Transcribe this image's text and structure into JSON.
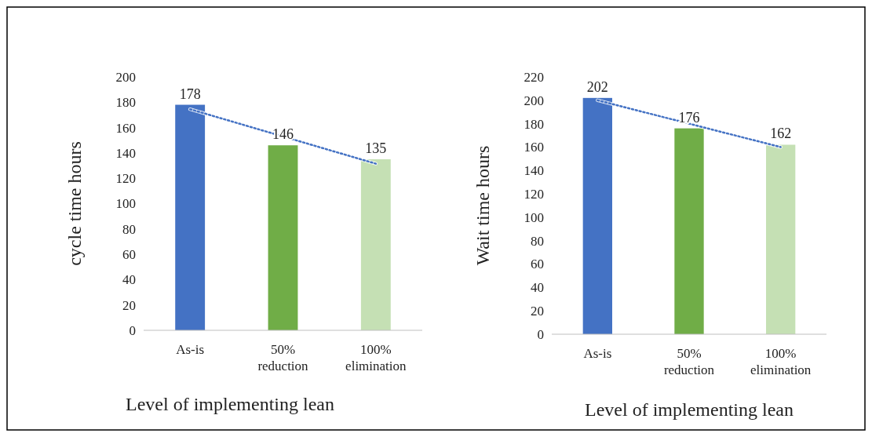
{
  "chart_data": [
    {
      "type": "bar",
      "xlabel": "Level of implementing lean",
      "ylabel": "cycle time hours",
      "categories": [
        "As-is",
        "50% reduction",
        "100% elimination"
      ],
      "ylim": [
        0,
        200
      ],
      "yticks": [
        0,
        20,
        40,
        60,
        80,
        100,
        120,
        140,
        160,
        180,
        200
      ],
      "series": [
        {
          "values": [
            178,
            146,
            135
          ],
          "colors": [
            "#4472c4",
            "#70ad47",
            "#c5e0b4"
          ],
          "value_labels": [
            "178",
            "146",
            "135"
          ]
        },
        {
          "type": "line",
          "x": [
            "As-is",
            "50% reduction",
            "100% elimination"
          ],
          "values": [
            174.5,
            153,
            131.5
          ],
          "color": "#4472c4",
          "line_style": "dotted",
          "marker": "none"
        }
      ]
    },
    {
      "type": "bar",
      "xlabel": "Level of implementing lean",
      "ylabel": "Wait time hours",
      "categories": [
        "As-is",
        "50% reduction",
        "100% elimination"
      ],
      "ylim": [
        0,
        220
      ],
      "yticks": [
        0,
        20,
        40,
        60,
        80,
        100,
        120,
        140,
        160,
        180,
        200,
        220
      ],
      "series": [
        {
          "values": [
            202,
            176,
            162
          ],
          "colors": [
            "#4472c4",
            "#70ad47",
            "#c5e0b4"
          ],
          "value_labels": [
            "202",
            "176",
            "162"
          ]
        },
        {
          "type": "line",
          "x": [
            "As-is",
            "50% reduction",
            "100% elimination"
          ],
          "values": [
            200,
            180,
            160
          ],
          "color": "#4472c4",
          "line_style": "dotted",
          "marker": "none"
        }
      ]
    }
  ]
}
